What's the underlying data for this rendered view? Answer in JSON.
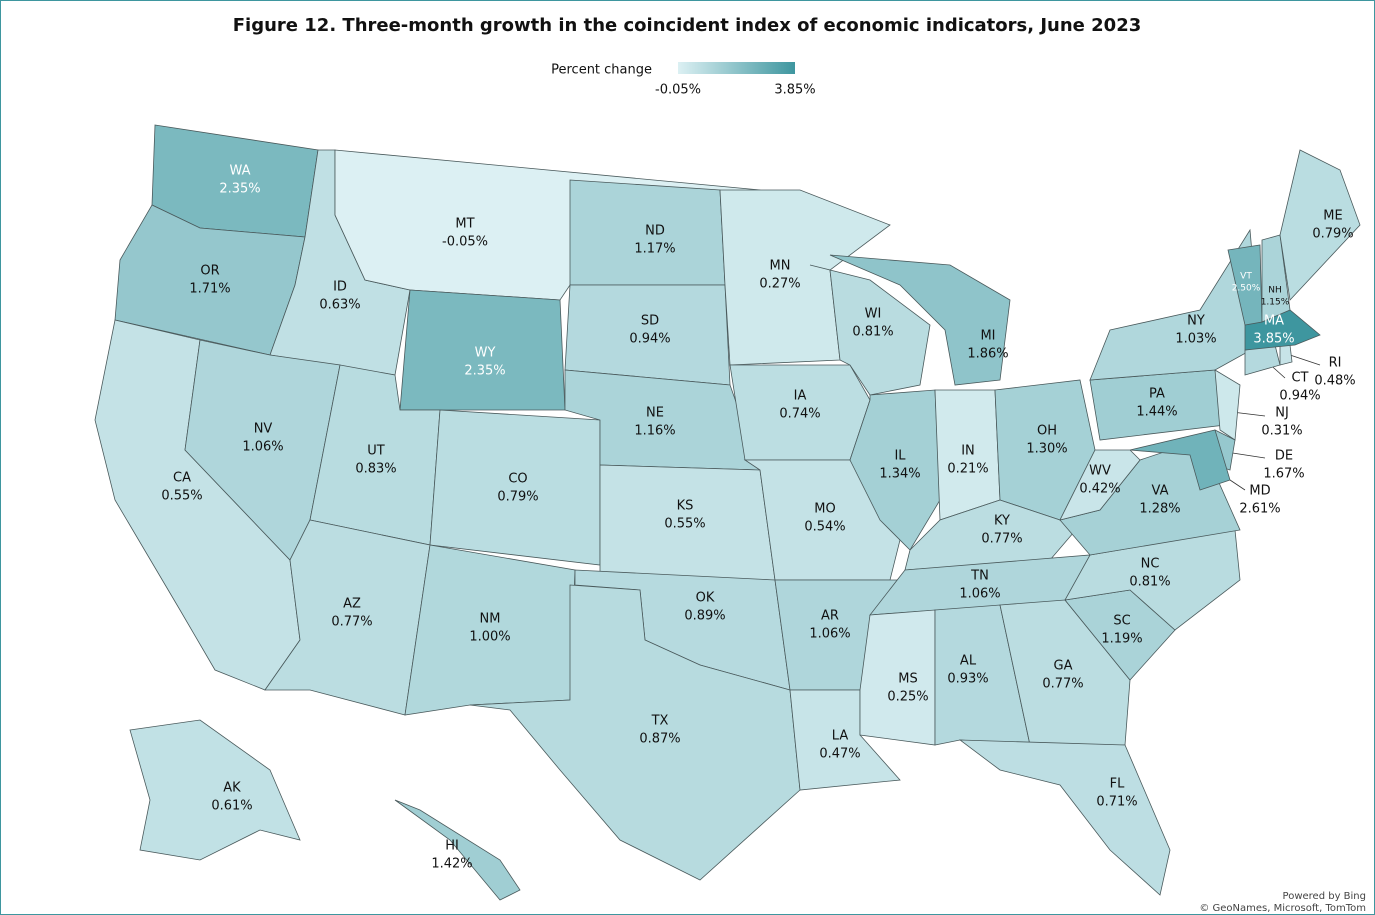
{
  "chart_data": {
    "type": "choropleth",
    "title": "Figure 12. Three-month growth in the coincident index of economic indicators, June 2023",
    "legend_title": "Percent change",
    "colorlim": [
      -0.05,
      3.85
    ],
    "colorticks": [
      {
        "value": -0.05,
        "label": "-0.05%"
      },
      {
        "value": 3.85,
        "label": "3.85%"
      }
    ],
    "colors": [
      "#dcf0f3",
      "#3e969f"
    ],
    "categories": [
      "WA",
      "OR",
      "CA",
      "ID",
      "NV",
      "MT",
      "WY",
      "UT",
      "AZ",
      "CO",
      "NM",
      "ND",
      "SD",
      "NE",
      "KS",
      "OK",
      "TX",
      "MN",
      "IA",
      "MO",
      "AR",
      "LA",
      "WI",
      "IL",
      "MI",
      "IN",
      "OH",
      "KY",
      "TN",
      "MS",
      "AL",
      "GA",
      "FL",
      "SC",
      "NC",
      "VA",
      "WV",
      "PA",
      "NY",
      "NJ",
      "DE",
      "MD",
      "CT",
      "RI",
      "MA",
      "VT",
      "NH",
      "ME",
      "AK",
      "HI"
    ],
    "values": [
      2.35,
      1.71,
      0.55,
      0.63,
      1.06,
      -0.05,
      2.35,
      0.83,
      0.77,
      0.79,
      1.0,
      1.17,
      0.94,
      1.16,
      0.55,
      0.89,
      0.87,
      0.27,
      0.74,
      0.54,
      1.06,
      0.47,
      0.81,
      1.34,
      1.86,
      0.21,
      1.3,
      0.77,
      1.06,
      0.25,
      0.93,
      0.77,
      0.71,
      1.19,
      0.81,
      1.28,
      0.42,
      1.44,
      1.03,
      0.31,
      1.67,
      2.61,
      0.94,
      0.48,
      3.85,
      2.5,
      1.15,
      0.79,
      0.61,
      1.42
    ],
    "value_labels": [
      "2.35%",
      "1.71%",
      "0.55%",
      "0.63%",
      "1.06%",
      "-0.05%",
      "2.35%",
      "0.83%",
      "0.77%",
      "0.79%",
      "1.00%",
      "1.17%",
      "0.94%",
      "1.16%",
      "0.55%",
      "0.89%",
      "0.87%",
      "0.27%",
      "0.74%",
      "0.54%",
      "1.06%",
      "0.47%",
      "0.81%",
      "1.34%",
      "1.86%",
      "0.21%",
      "1.30%",
      "0.77%",
      "1.06%",
      "0.25%",
      "0.93%",
      "0.77%",
      "0.71%",
      "1.19%",
      "0.81%",
      "1.28%",
      "0.42%",
      "1.44%",
      "1.03%",
      "0.31%",
      "1.67%",
      "2.61%",
      "0.94%",
      "0.48%",
      "3.85%",
      "2.50%",
      "1.15%",
      "0.79%",
      "0.61%",
      "1.42%"
    ],
    "credits": [
      "Powered by Bing",
      "© GeoNames, Microsoft, TomTom"
    ]
  }
}
